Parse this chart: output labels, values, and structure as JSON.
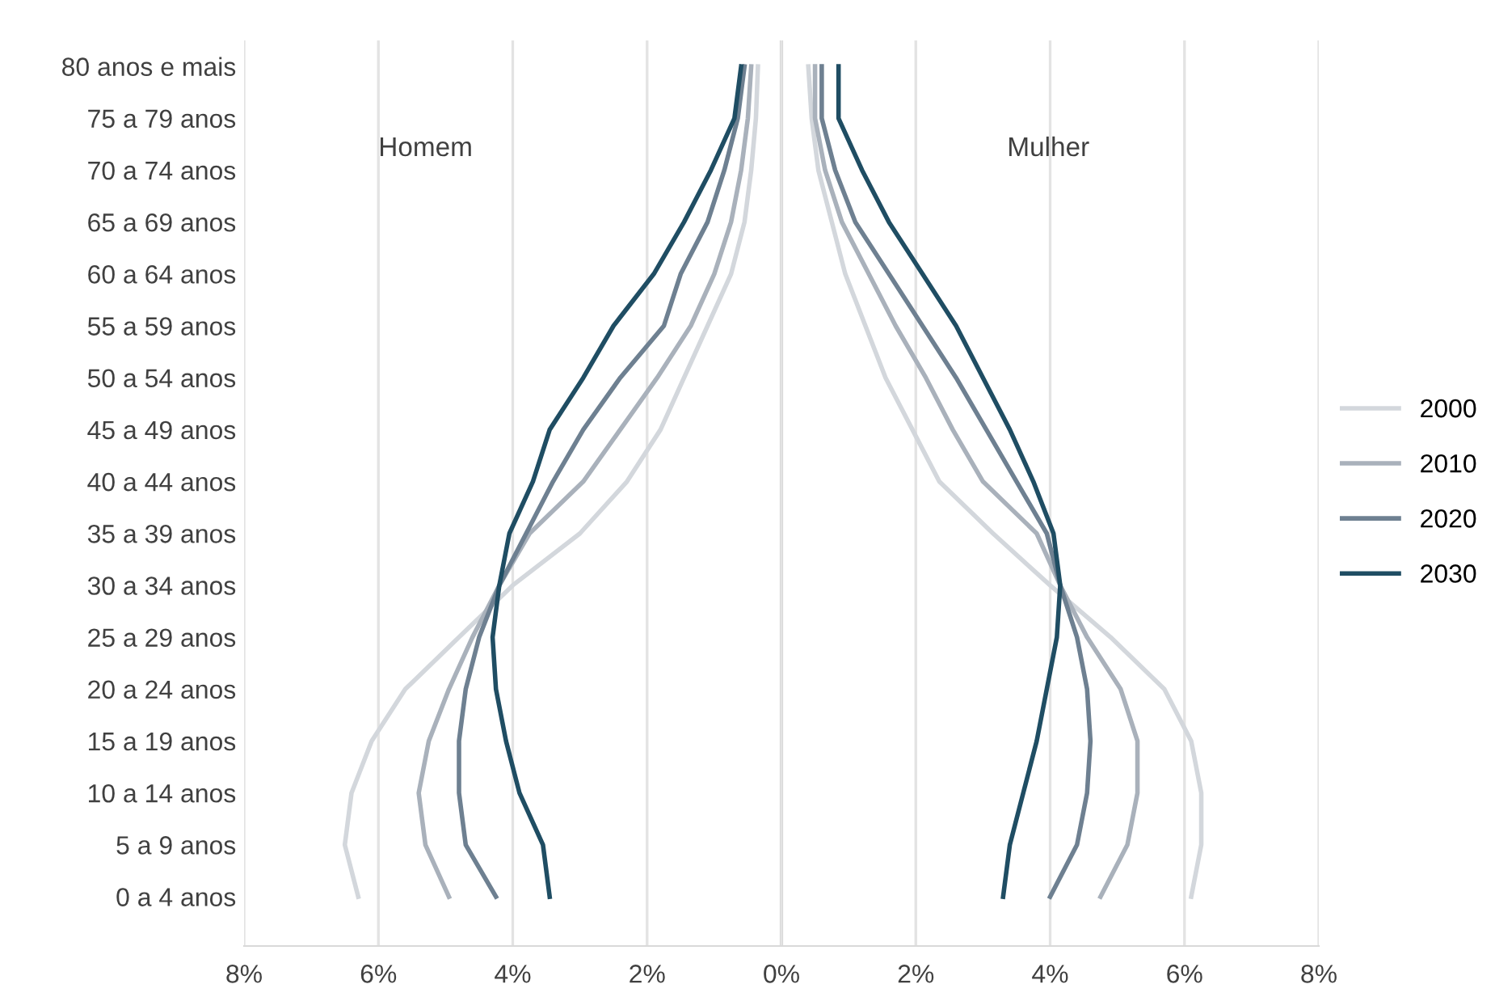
{
  "chart_data": {
    "type": "line",
    "orientation": "horizontal",
    "categories": [
      "80 anos e mais",
      "75 a 79 anos",
      "70 a 74 anos",
      "65 a 69 anos",
      "60 a 64 anos",
      "55 a 59 anos",
      "50 a 54 anos",
      "45 a 49 anos",
      "40 a 44 anos",
      "35 a 39 anos",
      "30 a 34 anos",
      "25 a 29 anos",
      "20 a 24 anos",
      "15 a 19 anos",
      "10 a 14 anos",
      "5 a 9 anos",
      "0 a 4 anos"
    ],
    "series": [
      {
        "color": "#d3d7dc",
        "values": [
          -0.35,
          -0.38,
          -0.45,
          -0.55,
          -0.75,
          -1.1,
          -1.45,
          -1.8,
          -2.3,
          -3.0,
          -4.0,
          -4.8,
          -5.6,
          -6.1,
          -6.4,
          -6.5,
          -6.3
        ]
      },
      {
        "name": "2000",
        "color": "#d3d7dc",
        "values": [
          0.4,
          0.45,
          0.55,
          0.75,
          0.95,
          1.25,
          1.55,
          1.95,
          2.35,
          3.15,
          4.0,
          4.9,
          5.7,
          6.1,
          6.25,
          6.25,
          6.1
        ]
      },
      {
        "color": "#a9b1bb",
        "values": [
          -0.45,
          -0.5,
          -0.6,
          -0.75,
          -1.0,
          -1.35,
          -1.85,
          -2.4,
          -2.95,
          -3.75,
          -4.2,
          -4.6,
          -4.95,
          -5.25,
          -5.4,
          -5.3,
          -4.95
        ]
      },
      {
        "name": "2010",
        "color": "#a9b1bb",
        "values": [
          0.5,
          0.5,
          0.65,
          0.9,
          1.3,
          1.7,
          2.15,
          2.55,
          3.0,
          3.8,
          4.15,
          4.55,
          5.05,
          5.3,
          5.3,
          5.15,
          4.75
        ]
      },
      {
        "color": "#6e8091",
        "values": [
          -0.55,
          -0.65,
          -0.85,
          -1.1,
          -1.5,
          -1.75,
          -2.4,
          -2.95,
          -3.4,
          -3.8,
          -4.2,
          -4.5,
          -4.7,
          -4.8,
          -4.8,
          -4.7,
          -4.25
        ]
      },
      {
        "name": "2020",
        "color": "#6e8091",
        "values": [
          0.6,
          0.6,
          0.8,
          1.1,
          1.6,
          2.1,
          2.6,
          3.05,
          3.5,
          3.95,
          4.15,
          4.4,
          4.55,
          4.6,
          4.55,
          4.4,
          4.0
        ]
      },
      {
        "color": "#1f4d63",
        "values": [
          -0.6,
          -0.7,
          -1.05,
          -1.45,
          -1.9,
          -2.5,
          -2.95,
          -3.45,
          -3.7,
          -4.05,
          -4.2,
          -4.3,
          -4.25,
          -4.1,
          -3.9,
          -3.55,
          -3.45
        ]
      },
      {
        "name": "2030",
        "color": "#1f4d63",
        "values": [
          0.85,
          0.85,
          1.2,
          1.6,
          2.1,
          2.6,
          3.0,
          3.4,
          3.75,
          4.05,
          4.15,
          4.1,
          3.95,
          3.8,
          3.6,
          3.4,
          3.3
        ]
      }
    ],
    "xlim": [
      -8,
      8
    ],
    "xticks": [
      {
        "value": -8,
        "label": "8%"
      },
      {
        "value": -6,
        "label": "6%"
      },
      {
        "value": -4,
        "label": "4%"
      },
      {
        "value": -2,
        "label": "2%"
      },
      {
        "value": 0,
        "label": "0%"
      },
      {
        "value": 2,
        "label": "2%"
      },
      {
        "value": 4,
        "label": "4%"
      },
      {
        "value": 6,
        "label": "6%"
      },
      {
        "value": 8,
        "label": "8%"
      }
    ],
    "annotations": [
      "Homem",
      "Mulher"
    ],
    "grid": "x",
    "legend": "right",
    "marker": "none",
    "line_style": "solid"
  }
}
